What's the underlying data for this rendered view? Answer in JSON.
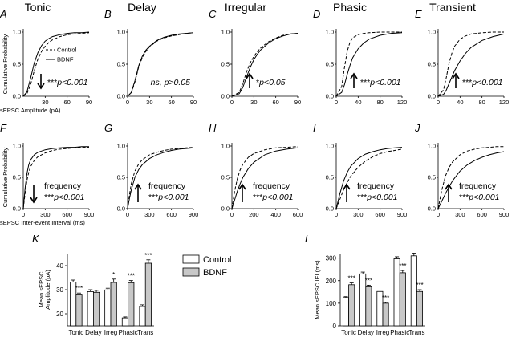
{
  "columns": [
    "Tonic",
    "Delay",
    "Irregular",
    "Phasic",
    "Transient"
  ],
  "legend": {
    "control": "Control",
    "bdnf": "BDNF"
  },
  "chart_data": {
    "cdf_amplitude": {
      "type": "line",
      "ylabel": "Cumulative Probability",
      "xlabel": "sEPSC Amplitude (pA)",
      "yticks": [
        "0.0",
        "0.5",
        "1.0"
      ],
      "panels": [
        {
          "letter": "A",
          "xlim": [
            0,
            90
          ],
          "xticks": [
            "30",
            "60",
            "90"
          ],
          "arrow": "down",
          "stars": "***",
          "stat": "p<0.001",
          "control": {
            "x": [
              0,
              5,
              10,
              15,
              20,
              25,
              30,
              35,
              40,
              50,
              60,
              70,
              80,
              90
            ],
            "y": [
              0,
              0.04,
              0.18,
              0.4,
              0.58,
              0.7,
              0.78,
              0.84,
              0.88,
              0.93,
              0.96,
              0.97,
              0.98,
              0.99
            ]
          },
          "bdnf": {
            "x": [
              0,
              5,
              10,
              15,
              20,
              25,
              30,
              35,
              40,
              50,
              60,
              70,
              80,
              90
            ],
            "y": [
              0,
              0.07,
              0.28,
              0.52,
              0.68,
              0.79,
              0.86,
              0.9,
              0.93,
              0.96,
              0.98,
              0.99,
              0.99,
              1.0
            ]
          }
        },
        {
          "letter": "B",
          "xlim": [
            0,
            90
          ],
          "xticks": [
            "0",
            "30",
            "60",
            "90"
          ],
          "note": "ns, p>0.05",
          "control": {
            "x": [
              0,
              5,
              10,
              15,
              20,
              25,
              30,
              40,
              50,
              60,
              70,
              80,
              90
            ],
            "y": [
              0,
              0.05,
              0.22,
              0.45,
              0.6,
              0.7,
              0.77,
              0.86,
              0.91,
              0.94,
              0.96,
              0.98,
              0.99
            ]
          },
          "bdnf": {
            "x": [
              0,
              5,
              10,
              15,
              20,
              25,
              30,
              40,
              50,
              60,
              70,
              80,
              90
            ],
            "y": [
              0,
              0.06,
              0.24,
              0.47,
              0.62,
              0.72,
              0.78,
              0.87,
              0.92,
              0.95,
              0.97,
              0.98,
              0.99
            ]
          }
        },
        {
          "letter": "C",
          "xlim": [
            0,
            90
          ],
          "xticks": [
            "0",
            "30",
            "60",
            "90"
          ],
          "arrow": "up",
          "stars": "*",
          "stat": "p<0.05",
          "control": {
            "x": [
              0,
              10,
              15,
              20,
              25,
              30,
              35,
              40,
              50,
              60,
              70,
              80,
              90
            ],
            "y": [
              0,
              0.06,
              0.2,
              0.38,
              0.52,
              0.62,
              0.7,
              0.76,
              0.85,
              0.91,
              0.95,
              0.97,
              0.98
            ]
          },
          "bdnf": {
            "x": [
              0,
              10,
              15,
              20,
              25,
              30,
              35,
              40,
              50,
              60,
              70,
              80,
              90
            ],
            "y": [
              0,
              0.04,
              0.14,
              0.3,
              0.45,
              0.57,
              0.66,
              0.73,
              0.83,
              0.9,
              0.94,
              0.97,
              0.98
            ]
          }
        },
        {
          "letter": "D",
          "xlim": [
            0,
            120
          ],
          "xticks": [
            "0",
            "40",
            "80",
            "120"
          ],
          "arrow": "up",
          "stars": "***",
          "stat": "p<0.001",
          "control": {
            "x": [
              0,
              10,
              15,
              20,
              25,
              30,
              40,
              50,
              60,
              80,
              100,
              120
            ],
            "y": [
              0,
              0.15,
              0.45,
              0.7,
              0.84,
              0.91,
              0.96,
              0.98,
              0.99,
              1.0,
              1.0,
              1.0
            ]
          },
          "bdnf": {
            "x": [
              0,
              10,
              15,
              20,
              25,
              30,
              40,
              50,
              60,
              80,
              100,
              120
            ],
            "y": [
              0,
              0.06,
              0.18,
              0.34,
              0.48,
              0.6,
              0.74,
              0.83,
              0.89,
              0.95,
              0.98,
              0.99
            ]
          }
        },
        {
          "letter": "E",
          "xlim": [
            0,
            120
          ],
          "xticks": [
            "0",
            "40",
            "80",
            "120"
          ],
          "arrow": "up",
          "stars": "***",
          "stat": "p<0.001",
          "control": {
            "x": [
              0,
              10,
              15,
              20,
              25,
              30,
              40,
              50,
              60,
              80,
              100,
              120
            ],
            "y": [
              0,
              0.1,
              0.3,
              0.52,
              0.67,
              0.78,
              0.89,
              0.94,
              0.97,
              0.99,
              1.0,
              1.0
            ]
          },
          "bdnf": {
            "x": [
              0,
              10,
              15,
              20,
              25,
              30,
              40,
              50,
              60,
              80,
              100,
              120
            ],
            "y": [
              0,
              0.03,
              0.1,
              0.2,
              0.3,
              0.4,
              0.55,
              0.67,
              0.76,
              0.87,
              0.93,
              0.97
            ]
          }
        }
      ]
    },
    "cdf_interval": {
      "type": "line",
      "ylabel": "Cumulative Probability",
      "xlabel": "sEPSC Inter-event Interval (ms)",
      "yticks": [
        "0.0",
        "0.5",
        "1.0"
      ],
      "label": "frequency",
      "panels": [
        {
          "letter": "F",
          "xlim": [
            0,
            900
          ],
          "xticks": [
            "0",
            "300",
            "600",
            "900"
          ],
          "arrow": "down",
          "stars": "***",
          "stat": "p<0.001",
          "control": {
            "x": [
              0,
              25,
              50,
              75,
              100,
              150,
              200,
              300,
              400,
              500,
              600,
              700,
              800,
              900
            ],
            "y": [
              0,
              0.25,
              0.45,
              0.58,
              0.67,
              0.77,
              0.83,
              0.89,
              0.93,
              0.95,
              0.96,
              0.97,
              0.98,
              0.98
            ]
          },
          "bdnf": {
            "x": [
              0,
              25,
              50,
              75,
              100,
              150,
              200,
              300,
              400,
              500,
              600,
              700,
              800,
              900
            ],
            "y": [
              0,
              0.33,
              0.56,
              0.7,
              0.78,
              0.86,
              0.9,
              0.94,
              0.96,
              0.97,
              0.98,
              0.98,
              0.99,
              0.99
            ]
          }
        },
        {
          "letter": "G",
          "xlim": [
            0,
            900
          ],
          "xticks": [
            "0",
            "300",
            "600",
            "900"
          ],
          "arrow": "up",
          "stars": "***",
          "stat": "p<0.001",
          "control": {
            "x": [
              0,
              25,
              50,
              100,
              150,
              200,
              300,
              400,
              500,
              600,
              700,
              800,
              900
            ],
            "y": [
              0,
              0.22,
              0.4,
              0.6,
              0.71,
              0.78,
              0.86,
              0.9,
              0.93,
              0.95,
              0.96,
              0.97,
              0.98
            ]
          },
          "bdnf": {
            "x": [
              0,
              25,
              50,
              100,
              150,
              200,
              300,
              400,
              500,
              600,
              700,
              800,
              900
            ],
            "y": [
              0,
              0.16,
              0.3,
              0.5,
              0.62,
              0.7,
              0.8,
              0.86,
              0.9,
              0.93,
              0.95,
              0.96,
              0.97
            ]
          }
        },
        {
          "letter": "H",
          "xlim": [
            0,
            600
          ],
          "xticks": [
            "0",
            "200",
            "400",
            "600"
          ],
          "arrow": "up",
          "stars": "***",
          "stat": "p<0.001",
          "control": {
            "x": [
              0,
              25,
              50,
              75,
              100,
              150,
              200,
              300,
              400,
              500,
              600
            ],
            "y": [
              0,
              0.28,
              0.48,
              0.62,
              0.71,
              0.82,
              0.88,
              0.94,
              0.97,
              0.98,
              0.99
            ]
          },
          "bdnf": {
            "x": [
              0,
              25,
              50,
              75,
              100,
              150,
              200,
              300,
              400,
              500,
              600
            ],
            "y": [
              0,
              0.14,
              0.28,
              0.4,
              0.5,
              0.64,
              0.74,
              0.86,
              0.92,
              0.95,
              0.97
            ]
          }
        },
        {
          "letter": "I",
          "xlim": [
            0,
            900
          ],
          "xticks": [
            "0",
            "300",
            "600",
            "900"
          ],
          "arrow": "up",
          "stars": "***",
          "stat": "p<0.001",
          "control": {
            "x": [
              0,
              50,
              100,
              150,
              200,
              300,
              400,
              500,
              600,
              700,
              800,
              900
            ],
            "y": [
              0,
              0.15,
              0.3,
              0.42,
              0.52,
              0.66,
              0.76,
              0.83,
              0.88,
              0.91,
              0.93,
              0.95
            ]
          },
          "bdnf": {
            "x": [
              0,
              50,
              100,
              150,
              200,
              300,
              400,
              500,
              600,
              700,
              800,
              900
            ],
            "y": [
              0,
              0.24,
              0.44,
              0.58,
              0.68,
              0.8,
              0.87,
              0.91,
              0.94,
              0.96,
              0.97,
              0.98
            ]
          }
        },
        {
          "letter": "J",
          "xlim": [
            0,
            900
          ],
          "xticks": [
            "0",
            "300",
            "600",
            "900"
          ],
          "arrow": "up",
          "stars": "***",
          "stat": "p<0.001",
          "control": {
            "x": [
              0,
              50,
              100,
              150,
              200,
              300,
              400,
              500,
              600,
              700,
              800,
              900
            ],
            "y": [
              0,
              0.3,
              0.52,
              0.66,
              0.75,
              0.86,
              0.92,
              0.95,
              0.97,
              0.98,
              0.99,
              0.99
            ]
          },
          "bdnf": {
            "x": [
              0,
              50,
              100,
              150,
              200,
              300,
              400,
              500,
              600,
              700,
              800,
              900
            ],
            "y": [
              0,
              0.12,
              0.24,
              0.35,
              0.45,
              0.6,
              0.7,
              0.77,
              0.82,
              0.86,
              0.89,
              0.91
            ]
          }
        }
      ]
    },
    "bar_amplitude": {
      "type": "bar",
      "letter": "K",
      "ylabel_lines": [
        "Mean sEPSC",
        "Amplitude (pA)"
      ],
      "ylim": [
        15,
        45
      ],
      "yticks": [
        "20",
        "30",
        "40"
      ],
      "categories": [
        "Tonic",
        "Delay",
        "Irreg",
        "Phasic",
        "Trans"
      ],
      "series": [
        {
          "name": "Control",
          "values": [
            33.2,
            29.2,
            29.9,
            18.3,
            23.0
          ],
          "err": [
            0.8,
            0.8,
            0.7,
            0.4,
            0.7
          ]
        },
        {
          "name": "BDNF",
          "values": [
            27.8,
            28.9,
            33.0,
            32.9,
            41.0
          ],
          "err": [
            0.8,
            0.8,
            1.4,
            0.9,
            1.4
          ]
        }
      ],
      "stars": [
        "***",
        "",
        "*",
        "***",
        "***"
      ]
    },
    "bar_interval": {
      "type": "bar",
      "letter": "L",
      "ylabel_lines": [
        "Mean sEPSC IEI (ms)"
      ],
      "ylim": [
        0,
        320
      ],
      "yticks": [
        "0",
        "100",
        "200",
        "300"
      ],
      "categories": [
        "Tonic",
        "Delay",
        "Irreg",
        "Phasic",
        "Trans"
      ],
      "series": [
        {
          "name": "Control",
          "values": [
            125,
            230,
            152,
            297,
            310
          ],
          "err": [
            4,
            8,
            6,
            9,
            12
          ]
        },
        {
          "name": "BDNF",
          "values": [
            182,
            173,
            100,
            235,
            152
          ],
          "err": [
            8,
            7,
            4,
            10,
            8
          ]
        }
      ],
      "stars": [
        "***",
        "***",
        "***",
        "***",
        "***"
      ]
    }
  }
}
